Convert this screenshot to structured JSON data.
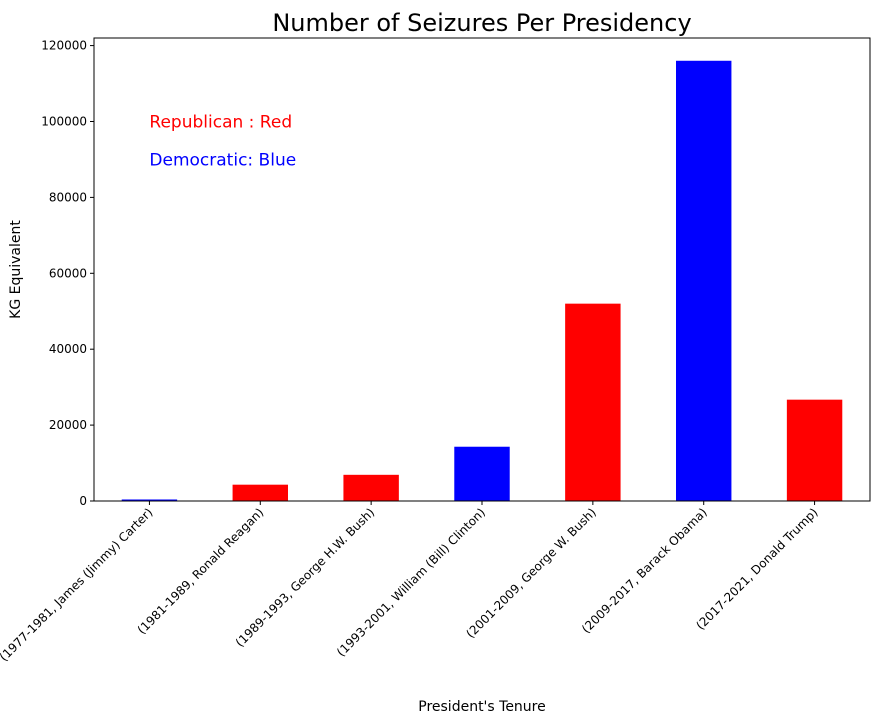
{
  "chart_data": {
    "type": "bar",
    "title": "Number of Seizures Per Presidency",
    "xlabel": "President's Tenure",
    "ylabel": "KG Equivalent",
    "ylim": [
      0,
      122000
    ],
    "yticks": [
      0,
      20000,
      40000,
      60000,
      80000,
      100000,
      120000
    ],
    "grid": false,
    "categories": [
      "(1977-1981, James (Jimmy) Carter)",
      "(1981-1989, Ronald Reagan)",
      "(1989-1993, George H.W. Bush)",
      "(1993-2001, William (Bill) Clinton)",
      "(2001-2009, George W. Bush)",
      "(2009-2017, Barack Obama)",
      "(2017-2021, Donald Trump)"
    ],
    "values": [
      400,
      4300,
      6900,
      14300,
      52000,
      116000,
      26700
    ],
    "colors": [
      "#0000ff",
      "#ff0000",
      "#ff0000",
      "#0000ff",
      "#ff0000",
      "#0000ff",
      "#ff0000"
    ],
    "annotations": [
      {
        "text": "Republican : Red",
        "color": "#ff0000"
      },
      {
        "text": "Democratic: Blue",
        "color": "#0000ff"
      }
    ]
  }
}
